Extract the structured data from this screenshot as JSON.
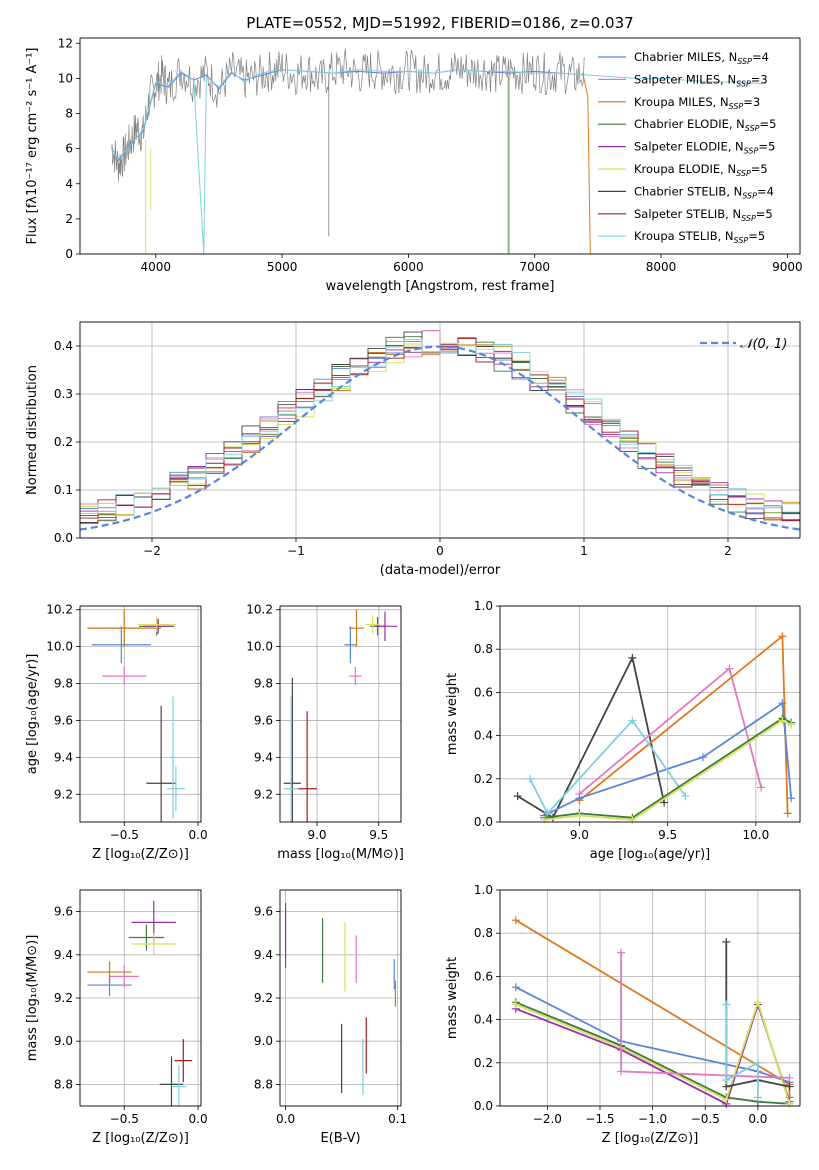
{
  "colors": {
    "chabrier_miles": "#5b85d9",
    "salpeter_miles": "#e377c2",
    "kroupa_miles": "#c97a1a",
    "chabrier_elodie": "#3d7a3d",
    "salpeter_elodie": "#9a2fa8",
    "kroupa_elodie": "#d4e05a",
    "chabrier_stelib": "#444444",
    "salpeter_stelib": "#a51c1c",
    "kroupa_stelib": "#7fd0dc",
    "gauss": "#5b85d9",
    "data": "#808080",
    "orange": "#e07a1f"
  },
  "chart_data": [
    {
      "id": "spectrum",
      "type": "line",
      "title": "PLATE=0552, MJD=51992, FIBERID=0186, z=0.037",
      "xlabel": "wavelength [Angstrom, rest frame]",
      "ylabel": "Flux [fλ10⁻¹⁷ erg cm⁻² s⁻¹ A⁻¹]",
      "xlim": [
        3400,
        9100
      ],
      "ylim": [
        0,
        12.3
      ],
      "xticks": [
        "4000",
        "5000",
        "6000",
        "7000",
        "8000",
        "9000"
      ],
      "yticks": [
        "0",
        "2",
        "4",
        "6",
        "8",
        "10",
        "12"
      ],
      "legend": [
        "Chabrier MILES, N_SSP=4",
        "Salpeter MILES, N_SSP=3",
        "Kroupa MILES, N_SSP=3",
        "Chabrier ELODIE, N_SSP=5",
        "Salpeter ELODIE, N_SSP=5",
        "Kroupa ELODIE, N_SSP=5",
        "Chabrier STELIB, N_SSP=4",
        "Salpeter STELIB, N_SSP=5",
        "Kroupa STELIB, N_SSP=5"
      ],
      "series": [
        {
          "key": "data",
          "x": [
            3650,
            3700,
            3750,
            3800,
            3850,
            3900,
            3950,
            4000,
            4050,
            4100,
            4200,
            4300,
            4400,
            4500,
            4600,
            4700,
            4800,
            4900,
            5000,
            5100,
            5200,
            5300,
            5400,
            5500,
            5600,
            5700,
            5800,
            5900,
            6000,
            6100,
            6200,
            6300,
            6400,
            6500,
            6600,
            6700,
            6800,
            6900,
            7000,
            7100,
            7200,
            7300,
            7400
          ],
          "y": [
            6.2,
            5.1,
            5.6,
            6.4,
            7.2,
            6.8,
            8.9,
            9.6,
            10.2,
            9.4,
            10.5,
            9.8,
            10.3,
            9.3,
            10.4,
            9.9,
            10.1,
            10.4,
            10.6,
            10.2,
            10.5,
            9.9,
            10.4,
            10.6,
            10.2,
            10.5,
            10.4,
            10.3,
            10.5,
            10.2,
            10.4,
            10.3,
            10.6,
            10.4,
            10.5,
            10.2,
            10.4,
            10.3,
            10.5,
            10.2,
            10.4,
            10.1,
            10.2
          ]
        },
        {
          "key": "chabrier_miles",
          "x": [
            3650,
            3700,
            3800,
            3900,
            4000,
            4100,
            4200,
            4300,
            4400,
            4500,
            4600,
            4700,
            4800,
            4900,
            5000,
            5200,
            5400,
            5600,
            5800,
            6000,
            6200,
            6400,
            6600,
            6800,
            7000,
            7200,
            7400
          ],
          "y": [
            6.1,
            5.3,
            6.3,
            7.0,
            9.7,
            9.5,
            10.3,
            9.9,
            10.2,
            9.4,
            10.3,
            9.9,
            10.1,
            10.3,
            10.5,
            10.4,
            10.3,
            10.4,
            10.3,
            10.4,
            10.3,
            10.5,
            10.4,
            10.3,
            10.4,
            10.3,
            10.2
          ]
        },
        {
          "key": "kroupa_stelib",
          "x": [
            3650,
            3700,
            3800,
            3900,
            4000,
            4100,
            4200,
            4300,
            4380,
            4400,
            4500,
            4600,
            4700,
            4800,
            4900,
            5000,
            5200,
            5400,
            5600,
            5800,
            6000,
            6200,
            6400,
            6600,
            6800,
            7000,
            7200,
            7400,
            7600,
            7800,
            8000,
            8200,
            8400,
            8600,
            8800
          ],
          "y": [
            6.0,
            5.4,
            6.2,
            7.1,
            9.8,
            9.6,
            10.4,
            9.9,
            0,
            10.1,
            9.5,
            10.4,
            9.8,
            10.2,
            10.4,
            10.5,
            10.4,
            10.3,
            10.5,
            10.4,
            10.4,
            10.3,
            10.5,
            10.4,
            10.4,
            10.3,
            10.3,
            10.2,
            10.1,
            10.0,
            10.0,
            9.9,
            9.8,
            9.8,
            9.7
          ]
        }
      ]
    },
    {
      "id": "residuals",
      "type": "line",
      "xlabel": "(data-model)/error",
      "ylabel": "Normed distribution",
      "xlim": [
        -2.5,
        2.5
      ],
      "ylim": [
        0,
        0.45
      ],
      "xticks": [
        "−2",
        "−1",
        "0",
        "1",
        "2"
      ],
      "yticks": [
        "0.0",
        "0.1",
        "0.2",
        "0.3",
        "0.4"
      ],
      "legend": [
        "𝒩(0, 1)"
      ],
      "gaussian": {
        "mu": 0,
        "sigma": 1
      }
    },
    {
      "id": "age-vs-Z",
      "type": "scatter",
      "xlabel": "Z [log₁₀(Z/Z⊙)]",
      "ylabel": "age  [log₁₀(age/yr)]",
      "xlim": [
        -0.8,
        0.02
      ],
      "ylim": [
        9.05,
        10.22
      ],
      "xticks": [
        "−0.5",
        "0.0"
      ],
      "yticks": [
        "9.2",
        "9.4",
        "9.6",
        "9.8",
        "10.0",
        "10.2"
      ],
      "points": [
        {
          "key": "chabrier_miles",
          "x": -0.52,
          "y": 10.01,
          "dx": 0.2,
          "dy": 0.1
        },
        {
          "key": "salpeter_miles",
          "x": -0.5,
          "y": 9.84,
          "dx": 0.15,
          "dy": 0.05
        },
        {
          "key": "kroupa_miles",
          "x": -0.5,
          "y": 10.1,
          "dx": 0.25,
          "dy": 0.1
        },
        {
          "key": "chabrier_elodie",
          "x": -0.28,
          "y": 10.11,
          "dx": 0.12,
          "dy": 0.05
        },
        {
          "key": "salpeter_elodie",
          "x": -0.27,
          "y": 10.11,
          "dx": 0.1,
          "dy": 0.04
        },
        {
          "key": "kroupa_elodie",
          "x": -0.28,
          "y": 10.12,
          "dx": 0.13,
          "dy": 0.04
        },
        {
          "key": "chabrier_stelib",
          "x": -0.25,
          "y": 9.26,
          "dx": 0.1,
          "dy": 0.42
        },
        {
          "key": "kroupa_stelib",
          "x": -0.15,
          "y": 9.23,
          "dx": 0.06,
          "dy": 0.12
        },
        {
          "key": "kroupa_stelib",
          "x": -0.17,
          "y": 9.4,
          "dx": 0.02,
          "dy": 0.33
        }
      ]
    },
    {
      "id": "age-vs-mass",
      "type": "scatter",
      "xlabel": "mass [log₁₀(M/M⊙)]",
      "ylabel": "",
      "xlim": [
        8.7,
        9.68
      ],
      "ylim": [
        9.05,
        10.22
      ],
      "xticks": [
        "9.0",
        "9.5"
      ],
      "yticks": [
        "9.2",
        "9.4",
        "9.6",
        "9.8",
        "10.0",
        "10.2"
      ],
      "points": [
        {
          "key": "chabrier_miles",
          "x": 9.27,
          "y": 10.01,
          "dx": 0.05,
          "dy": 0.1
        },
        {
          "key": "salpeter_miles",
          "x": 9.31,
          "y": 9.84,
          "dx": 0.05,
          "dy": 0.05
        },
        {
          "key": "kroupa_miles",
          "x": 9.32,
          "y": 10.1,
          "dx": 0.06,
          "dy": 0.1
        },
        {
          "key": "chabrier_elodie",
          "x": 9.49,
          "y": 10.11,
          "dx": 0.06,
          "dy": 0.05
        },
        {
          "key": "salpeter_elodie",
          "x": 9.55,
          "y": 10.11,
          "dx": 0.1,
          "dy": 0.08
        },
        {
          "key": "kroupa_elodie",
          "x": 9.45,
          "y": 10.12,
          "dx": 0.06,
          "dy": 0.05
        },
        {
          "key": "chabrier_stelib",
          "x": 8.8,
          "y": 9.26,
          "dx": 0.07,
          "dy": 0.57
        },
        {
          "key": "salpeter_stelib",
          "x": 8.92,
          "y": 9.23,
          "dx": 0.08,
          "dy": 0.42
        },
        {
          "key": "kroupa_stelib",
          "x": 8.79,
          "y": 9.23,
          "dx": 0.06,
          "dy": 0.5
        }
      ]
    },
    {
      "id": "weight-vs-age",
      "type": "line",
      "xlabel": "age  [log₁₀(age/yr)]",
      "ylabel": "mass weight",
      "xlim": [
        8.55,
        10.25
      ],
      "ylim": [
        0,
        1.0
      ],
      "xticks": [
        "9.0",
        "9.5",
        "10.0"
      ],
      "yticks": [
        "0.0",
        "0.2",
        "0.4",
        "0.6",
        "0.8",
        "1.0"
      ],
      "series": [
        {
          "key": "chabrier_stelib",
          "x": [
            8.65,
            8.85,
            9.3,
            9.48
          ],
          "y": [
            0.12,
            0.02,
            0.76,
            0.09
          ]
        },
        {
          "key": "salpeter_miles",
          "x": [
            9.0,
            9.85,
            10.03
          ],
          "y": [
            0.13,
            0.71,
            0.16
          ]
        },
        {
          "key": "orange",
          "x": [
            9.0,
            10.15,
            10.18
          ],
          "y": [
            0.1,
            0.86,
            0.04
          ]
        },
        {
          "key": "chabrier_miles",
          "x": [
            8.8,
            9.0,
            9.7,
            10.15,
            10.2
          ],
          "y": [
            0.03,
            0.11,
            0.3,
            0.55,
            0.11
          ]
        },
        {
          "key": "kroupa_stelib",
          "x": [
            8.72,
            8.82,
            9.3,
            9.6
          ],
          "y": [
            0.2,
            0.04,
            0.47,
            0.12
          ]
        },
        {
          "key": "chabrier_elodie",
          "x": [
            8.8,
            9.0,
            9.3,
            10.15,
            10.2
          ],
          "y": [
            0.02,
            0.04,
            0.02,
            0.48,
            0.46
          ]
        },
        {
          "key": "kroupa_elodie",
          "x": [
            8.8,
            9.0,
            9.3,
            10.15,
            10.2
          ],
          "y": [
            0.01,
            0.03,
            0.01,
            0.47,
            0.45
          ]
        }
      ]
    },
    {
      "id": "mass-vs-Z",
      "type": "scatter",
      "xlabel": "Z [log₁₀(Z/Z⊙)]",
      "ylabel": "mass [log₁₀(M/M⊙)]",
      "xlim": [
        -0.8,
        0.02
      ],
      "ylim": [
        8.7,
        9.7
      ],
      "xticks": [
        "−0.5",
        "0.0"
      ],
      "yticks": [
        "8.8",
        "9.0",
        "9.2",
        "9.4",
        "9.6"
      ],
      "points": [
        {
          "key": "chabrier_miles",
          "x": -0.6,
          "y": 9.26,
          "dx": 0.15,
          "dy": 0.05
        },
        {
          "key": "salpeter_miles",
          "x": -0.5,
          "y": 9.3,
          "dx": 0.1,
          "dy": 0.05
        },
        {
          "key": "kroupa_miles",
          "x": -0.6,
          "y": 9.32,
          "dx": 0.15,
          "dy": 0.05
        },
        {
          "key": "chabrier_elodie",
          "x": -0.35,
          "y": 9.48,
          "dx": 0.12,
          "dy": 0.06
        },
        {
          "key": "salpeter_elodie",
          "x": -0.3,
          "y": 9.55,
          "dx": 0.15,
          "dy": 0.1
        },
        {
          "key": "kroupa_elodie",
          "x": -0.3,
          "y": 9.45,
          "dx": 0.15,
          "dy": 0.05
        },
        {
          "key": "chabrier_stelib",
          "x": -0.18,
          "y": 8.8,
          "dx": 0.08,
          "dy": 0.13
        },
        {
          "key": "salpeter_stelib",
          "x": -0.1,
          "y": 8.91,
          "dx": 0.06,
          "dy": 0.1
        },
        {
          "key": "kroupa_stelib",
          "x": -0.13,
          "y": 8.79,
          "dx": 0.05,
          "dy": 0.1
        }
      ]
    },
    {
      "id": "mass-vs-EBV",
      "type": "scatter",
      "xlabel": "E(B-V)",
      "ylabel": "",
      "xlim": [
        -0.005,
        0.103
      ],
      "ylim": [
        8.7,
        9.7
      ],
      "xticks": [
        "0.0",
        "0.1"
      ],
      "yticks": [
        "8.8",
        "9.0",
        "9.2",
        "9.4",
        "9.6"
      ],
      "points": [
        {
          "key": "salpeter_elodie",
          "x": 0.0,
          "y": 9.49,
          "dx": 0,
          "dy": 0.15
        },
        {
          "key": "chabrier_elodie",
          "x": 0.033,
          "y": 9.42,
          "dx": 0,
          "dy": 0.15
        },
        {
          "key": "kroupa_elodie",
          "x": 0.053,
          "y": 9.39,
          "dx": 0,
          "dy": 0.16
        },
        {
          "key": "salpeter_miles",
          "x": 0.063,
          "y": 9.38,
          "dx": 0,
          "dy": 0.11
        },
        {
          "key": "chabrier_stelib",
          "x": 0.05,
          "y": 8.92,
          "dx": 0,
          "dy": 0.16
        },
        {
          "key": "kroupa_stelib",
          "x": 0.069,
          "y": 8.88,
          "dx": 0,
          "dy": 0.13
        },
        {
          "key": "salpeter_stelib",
          "x": 0.072,
          "y": 8.98,
          "dx": 0,
          "dy": 0.13
        },
        {
          "key": "chabrier_miles",
          "x": 0.097,
          "y": 9.31,
          "dx": 0,
          "dy": 0.07
        },
        {
          "key": "kroupa_miles",
          "x": 0.098,
          "y": 9.22,
          "dx": 0,
          "dy": 0.06
        }
      ]
    },
    {
      "id": "weight-vs-Z",
      "type": "line",
      "xlabel": "Z [log₁₀(Z/Z⊙)]",
      "ylabel": "mass weight",
      "xlim": [
        -2.45,
        0.4
      ],
      "ylim": [
        0,
        1.0
      ],
      "xticks": [
        "−2.0",
        "−1.5",
        "−1.0",
        "−0.5",
        "0.0"
      ],
      "yticks": [
        "0.0",
        "0.2",
        "0.4",
        "0.6",
        "0.8",
        "1.0"
      ],
      "series": [
        {
          "key": "orange",
          "x": [
            -2.3,
            0.3,
            0.3
          ],
          "y": [
            0.86,
            0.1,
            0.04
          ]
        },
        {
          "key": "chabrier_miles",
          "x": [
            -2.3,
            -1.3,
            0.0,
            0.3
          ],
          "y": [
            0.55,
            0.3,
            0.16,
            0.11
          ]
        },
        {
          "key": "chabrier_elodie",
          "x": [
            -2.3,
            -1.3,
            -0.3,
            0.0,
            0.3
          ],
          "y": [
            0.48,
            0.28,
            0.04,
            0.02,
            0.01
          ]
        },
        {
          "key": "salpeter_elodie",
          "x": [
            -2.3,
            -1.3,
            -0.3,
            0.0,
            0.3
          ],
          "y": [
            0.45,
            0.26,
            0.01,
            0.47,
            0.02
          ]
        },
        {
          "key": "kroupa_elodie",
          "x": [
            -2.3,
            -1.3,
            -0.3,
            0.0,
            0.3
          ],
          "y": [
            0.47,
            0.27,
            0.03,
            0.48,
            0.01
          ]
        },
        {
          "key": "salpeter_miles",
          "x": [
            -1.3,
            -1.3,
            0.3
          ],
          "y": [
            0.71,
            0.16,
            0.13
          ]
        },
        {
          "key": "chabrier_stelib",
          "x": [
            -0.3,
            -0.3,
            0.0,
            0.3
          ],
          "y": [
            0.76,
            0.09,
            0.12,
            0.09
          ]
        },
        {
          "key": "kroupa_stelib",
          "x": [
            -0.3,
            -0.3,
            0.0,
            0.0
          ],
          "y": [
            0.47,
            0.12,
            0.2,
            0.04
          ]
        }
      ]
    }
  ]
}
